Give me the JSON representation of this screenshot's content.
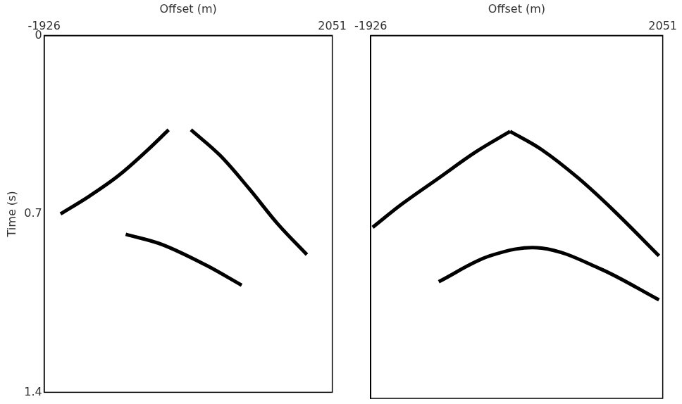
{
  "chart_data": [
    {
      "type": "line",
      "x_label": "Offset (m)",
      "y_label": "Time (s)",
      "xlim": [
        -1926,
        2051
      ],
      "xticks": [
        -1926,
        2051
      ],
      "ylim": [
        1.4,
        0
      ],
      "yticks": [
        0,
        0.7,
        1.4
      ],
      "grid": false,
      "marker": "none",
      "line_style": "solid",
      "series": [
        {
          "color": "#000000",
          "x": [
            -1700,
            -1300,
            -900,
            -500,
            -208
          ],
          "values": [
            0.7,
            0.63,
            0.55,
            0.45,
            0.37
          ]
        },
        {
          "color": "#000000",
          "x": [
            100,
            500,
            900,
            1300,
            1700
          ],
          "values": [
            0.37,
            0.47,
            0.6,
            0.74,
            0.86
          ]
        },
        {
          "color": "#000000",
          "x": [
            -800,
            -300,
            300,
            800
          ],
          "values": [
            0.78,
            0.82,
            0.9,
            0.98
          ]
        }
      ]
    },
    {
      "type": "line",
      "x_label": "Offset (m)",
      "xlim": [
        -1926,
        2051
      ],
      "xticks": [
        -1926,
        2051
      ],
      "ylim": [
        1.4,
        0
      ],
      "yticks": [
        0,
        0.7,
        1.4
      ],
      "grid": false,
      "marker": "none",
      "line_style": "solid",
      "tick_labels": "x",
      "series": [
        {
          "color": "#000000",
          "x": [
            -1900,
            -1500,
            -1000,
            -500,
            -28
          ],
          "values": [
            0.74,
            0.65,
            0.55,
            0.45,
            0.37
          ]
        },
        {
          "color": "#000000",
          "x": [
            -28,
            400,
            900,
            1400,
            2000
          ],
          "values": [
            0.37,
            0.44,
            0.55,
            0.68,
            0.85
          ]
        },
        {
          "color": "#000000",
          "x": [
            -1000,
            -300,
            400,
            1200,
            2000
          ],
          "values": [
            0.95,
            0.85,
            0.82,
            0.9,
            1.02
          ]
        }
      ]
    }
  ]
}
